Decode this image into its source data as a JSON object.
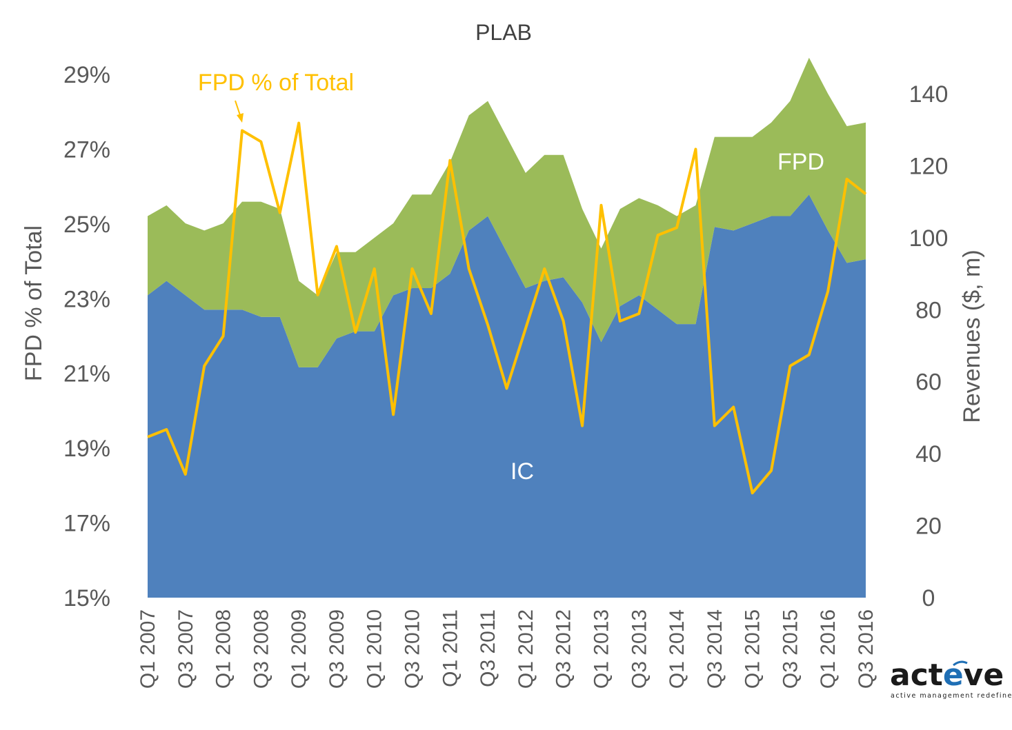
{
  "chart_data": {
    "type": "area",
    "title": "PLAB",
    "ylabel_left": "FPD % of Total",
    "ylabel_right": "Revenues ($, m)",
    "ylim_left": [
      0.15,
      0.29
    ],
    "ylim_right": [
      0,
      140
    ],
    "yticks_left": [
      "15%",
      "17%",
      "19%",
      "21%",
      "23%",
      "25%",
      "27%",
      "29%"
    ],
    "yticks_right": [
      "0",
      "20",
      "40",
      "60",
      "80",
      "100",
      "120",
      "140"
    ],
    "x": [
      "Q1 2007",
      "Q2 2007",
      "Q3 2007",
      "Q4 2007",
      "Q1 2008",
      "Q2 2008",
      "Q3 2008",
      "Q4 2008",
      "Q1 2009",
      "Q2 2009",
      "Q3 2009",
      "Q4 2009",
      "Q1 2010",
      "Q2 2010",
      "Q3 2010",
      "Q4 2010",
      "Q1 2011",
      "Q2 2011",
      "Q3 2011",
      "Q4 2011",
      "Q1 2012",
      "Q2 2012",
      "Q3 2012",
      "Q4 2012",
      "Q1 2013",
      "Q2 2013",
      "Q3 2013",
      "Q4 2013",
      "Q1 2014",
      "Q2 2014",
      "Q3 2014",
      "Q4 2014",
      "Q1 2015",
      "Q2 2015",
      "Q3 2015",
      "Q4 2015",
      "Q1 2016",
      "Q2 2016",
      "Q3 2016"
    ],
    "xtick_labels": [
      "Q1 2007",
      "",
      "Q3 2007",
      "",
      "Q1 2008",
      "",
      "Q3 2008",
      "",
      "Q1 2009",
      "",
      "Q3 2009",
      "",
      "Q1 2010",
      "",
      "Q3 2010",
      "",
      "Q1 2011",
      "",
      "Q3 2011",
      "",
      "Q1 2012",
      "",
      "Q3 2012",
      "",
      "Q1 2013",
      "",
      "Q3 2013",
      "",
      "Q1 2014",
      "",
      "Q3 2014",
      "",
      "Q1 2015",
      "",
      "Q3 2015",
      "",
      "Q1 2016",
      "",
      "Q3 2016"
    ],
    "series": [
      {
        "name": "IC",
        "axis": "right",
        "kind": "stacked-area",
        "color": "#4f81bd",
        "values": [
          84,
          88,
          84,
          80,
          80,
          80,
          78,
          78,
          64,
          64,
          72,
          74,
          74,
          84,
          86,
          86,
          90,
          102,
          106,
          96,
          86,
          88,
          89,
          82,
          71,
          81,
          84,
          80,
          76,
          76,
          103,
          102,
          104,
          106,
          106,
          112,
          102,
          93,
          94
        ]
      },
      {
        "name": "FPD",
        "axis": "right",
        "kind": "stacked-area",
        "color": "#9bbb59",
        "values": [
          22,
          21,
          20,
          22,
          24,
          30,
          32,
          30,
          24,
          20,
          24,
          22,
          26,
          20,
          26,
          26,
          31,
          32,
          32,
          32,
          32,
          35,
          34,
          26,
          26,
          27,
          27,
          29,
          30,
          33,
          25,
          26,
          24,
          26,
          32,
          38,
          38,
          38,
          38
        ]
      },
      {
        "name": "FPD % of Total",
        "axis": "left",
        "kind": "line",
        "color": "#ffc000",
        "values": [
          0.193,
          0.195,
          0.183,
          0.212,
          0.22,
          0.275,
          0.272,
          0.253,
          0.277,
          0.231,
          0.244,
          0.221,
          0.238,
          0.199,
          0.238,
          0.226,
          0.267,
          0.238,
          0.223,
          0.206,
          0.222,
          0.238,
          0.224,
          0.196,
          0.255,
          0.224,
          0.226,
          0.247,
          0.249,
          0.27,
          0.196,
          0.201,
          0.178,
          0.184,
          0.212,
          0.215,
          0.232,
          0.262,
          0.258
        ]
      }
    ],
    "annotations": [
      {
        "id": "line-label",
        "text": "FPD % of Total",
        "color": "#ffc000"
      },
      {
        "id": "fpd-label",
        "text": "FPD",
        "color": "#ffffff"
      },
      {
        "id": "ic-label",
        "text": "IC",
        "color": "#ffffff"
      }
    ]
  },
  "logo": {
    "name": "acteve",
    "tagline": "active management redefined."
  }
}
